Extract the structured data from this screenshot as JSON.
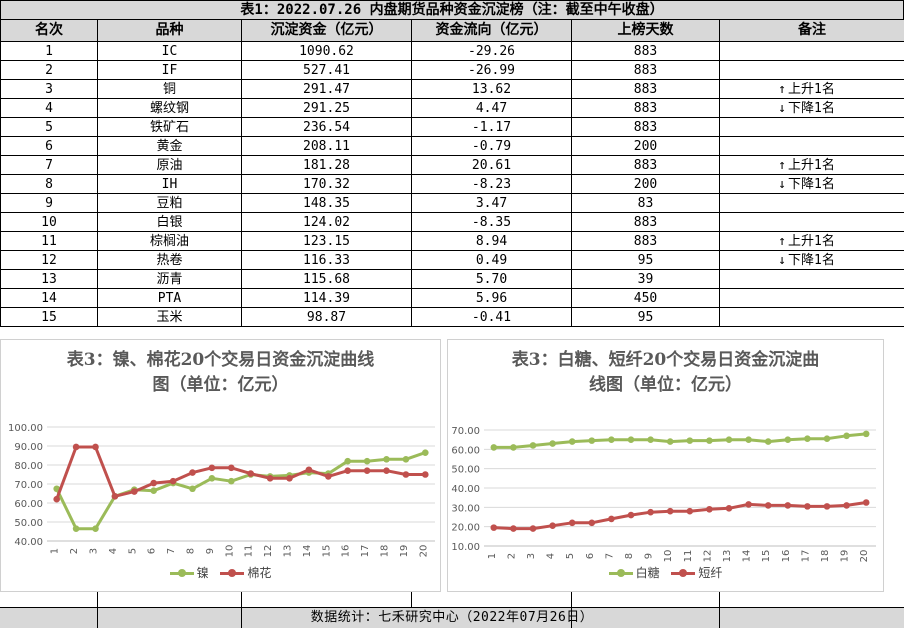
{
  "table_title": "表1：2022.07.26 内盘期货品种资金沉淀榜（注：截至中午收盘）",
  "columns": [
    "名次",
    "品种",
    "沉淀资金（亿元）",
    "资金流向（亿元）",
    "上榜天数",
    "备注"
  ],
  "rows": [
    {
      "rank": "1",
      "name": "IC",
      "capital": "1090.62",
      "flow": "-29.26",
      "days": "883",
      "arrow": "",
      "note": ""
    },
    {
      "rank": "2",
      "name": "IF",
      "capital": "527.41",
      "flow": "-26.99",
      "days": "883",
      "arrow": "",
      "note": ""
    },
    {
      "rank": "3",
      "name": "铜",
      "capital": "291.47",
      "flow": "13.62",
      "days": "883",
      "arrow": "↑",
      "note": "上升1名"
    },
    {
      "rank": "4",
      "name": "螺纹钢",
      "capital": "291.25",
      "flow": "4.47",
      "days": "883",
      "arrow": "↓",
      "note": "下降1名"
    },
    {
      "rank": "5",
      "name": "铁矿石",
      "capital": "236.54",
      "flow": "-1.17",
      "days": "883",
      "arrow": "",
      "note": ""
    },
    {
      "rank": "6",
      "name": "黄金",
      "capital": "208.11",
      "flow": "-0.79",
      "days": "200",
      "arrow": "",
      "note": ""
    },
    {
      "rank": "7",
      "name": "原油",
      "capital": "181.28",
      "flow": "20.61",
      "days": "883",
      "arrow": "↑",
      "note": "上升1名"
    },
    {
      "rank": "8",
      "name": "IH",
      "capital": "170.32",
      "flow": "-8.23",
      "days": "200",
      "arrow": "↓",
      "note": "下降1名"
    },
    {
      "rank": "9",
      "name": "豆粕",
      "capital": "148.35",
      "flow": "3.47",
      "days": "83",
      "arrow": "",
      "note": ""
    },
    {
      "rank": "10",
      "name": "白银",
      "capital": "124.02",
      "flow": "-8.35",
      "days": "883",
      "arrow": "",
      "note": ""
    },
    {
      "rank": "11",
      "name": "棕榈油",
      "capital": "123.15",
      "flow": "8.94",
      "days": "883",
      "arrow": "↑",
      "note": "上升1名"
    },
    {
      "rank": "12",
      "name": "热卷",
      "capital": "116.33",
      "flow": "0.49",
      "days": "95",
      "arrow": "↓",
      "note": "下降1名"
    },
    {
      "rank": "13",
      "name": "沥青",
      "capital": "115.68",
      "flow": "5.70",
      "days": "39",
      "arrow": "",
      "note": ""
    },
    {
      "rank": "14",
      "name": "PTA",
      "capital": "114.39",
      "flow": "5.96",
      "days": "450",
      "arrow": "",
      "note": ""
    },
    {
      "rank": "15",
      "name": "玉米",
      "capital": "98.87",
      "flow": "-0.41",
      "days": "95",
      "arrow": "",
      "note": ""
    }
  ],
  "chart_data": [
    {
      "type": "line",
      "title": "表3：镍、棉花20个交易日资金沉淀曲线图（单位：亿元）",
      "title_lines": [
        "表3：镍、棉花20个交易日资金沉淀曲线",
        "图（单位：亿元）"
      ],
      "x": [
        "1",
        "2",
        "3",
        "4",
        "5",
        "6",
        "7",
        "8",
        "9",
        "10",
        "11",
        "12",
        "13",
        "14",
        "15",
        "16",
        "17",
        "18",
        "19",
        "20"
      ],
      "ylim": [
        40,
        100
      ],
      "yticks": [
        "40.00",
        "50.00",
        "60.00",
        "70.00",
        "80.00",
        "90.00",
        "100.00"
      ],
      "grid": true,
      "legend": "bottom",
      "series": [
        {
          "name": "镍",
          "color": "#9bbb59",
          "values": [
            67.5,
            46.5,
            46.5,
            63.5,
            67,
            66.5,
            70.5,
            67.5,
            73,
            71.5,
            75,
            74,
            74.5,
            76,
            75.5,
            82,
            82,
            83,
            83,
            86.5
          ]
        },
        {
          "name": "棉花",
          "color": "#c0504d",
          "values": [
            62,
            89.5,
            89.5,
            63.5,
            66,
            70.5,
            71.5,
            76,
            78.5,
            78.5,
            75.5,
            73,
            73,
            77.5,
            74,
            77,
            77,
            77,
            75,
            75
          ]
        }
      ]
    },
    {
      "type": "line",
      "title": "表3：白糖、短纤20个交易日资金沉淀曲线图（单位：亿元）",
      "title_lines": [
        "表3：白糖、短纤20个交易日资金沉淀曲",
        "线图（单位：亿元）"
      ],
      "x": [
        "1",
        "2",
        "3",
        "4",
        "5",
        "6",
        "7",
        "8",
        "9",
        "10",
        "11",
        "12",
        "13",
        "14",
        "15",
        "16",
        "17",
        "18",
        "19",
        "20"
      ],
      "ylim": [
        10,
        70
      ],
      "yticks": [
        "10.00",
        "20.00",
        "30.00",
        "40.00",
        "50.00",
        "60.00",
        "70.00"
      ],
      "grid": true,
      "legend": "bottom",
      "series": [
        {
          "name": "白糖",
          "color": "#9bbb59",
          "values": [
            61,
            61,
            62,
            63,
            64,
            64.5,
            65,
            65,
            65,
            64,
            64.5,
            64.5,
            65,
            65,
            64,
            65,
            65.5,
            65.5,
            67,
            68
          ]
        },
        {
          "name": "短纤",
          "color": "#c0504d",
          "values": [
            19.5,
            19,
            19,
            20.5,
            22,
            22,
            24,
            26,
            27.5,
            28,
            28,
            29,
            29.5,
            31.5,
            31,
            31,
            30.5,
            30.5,
            31,
            32.5
          ]
        }
      ]
    }
  ],
  "footer": "数据统计：七禾研究中心（2022年07月26日）"
}
